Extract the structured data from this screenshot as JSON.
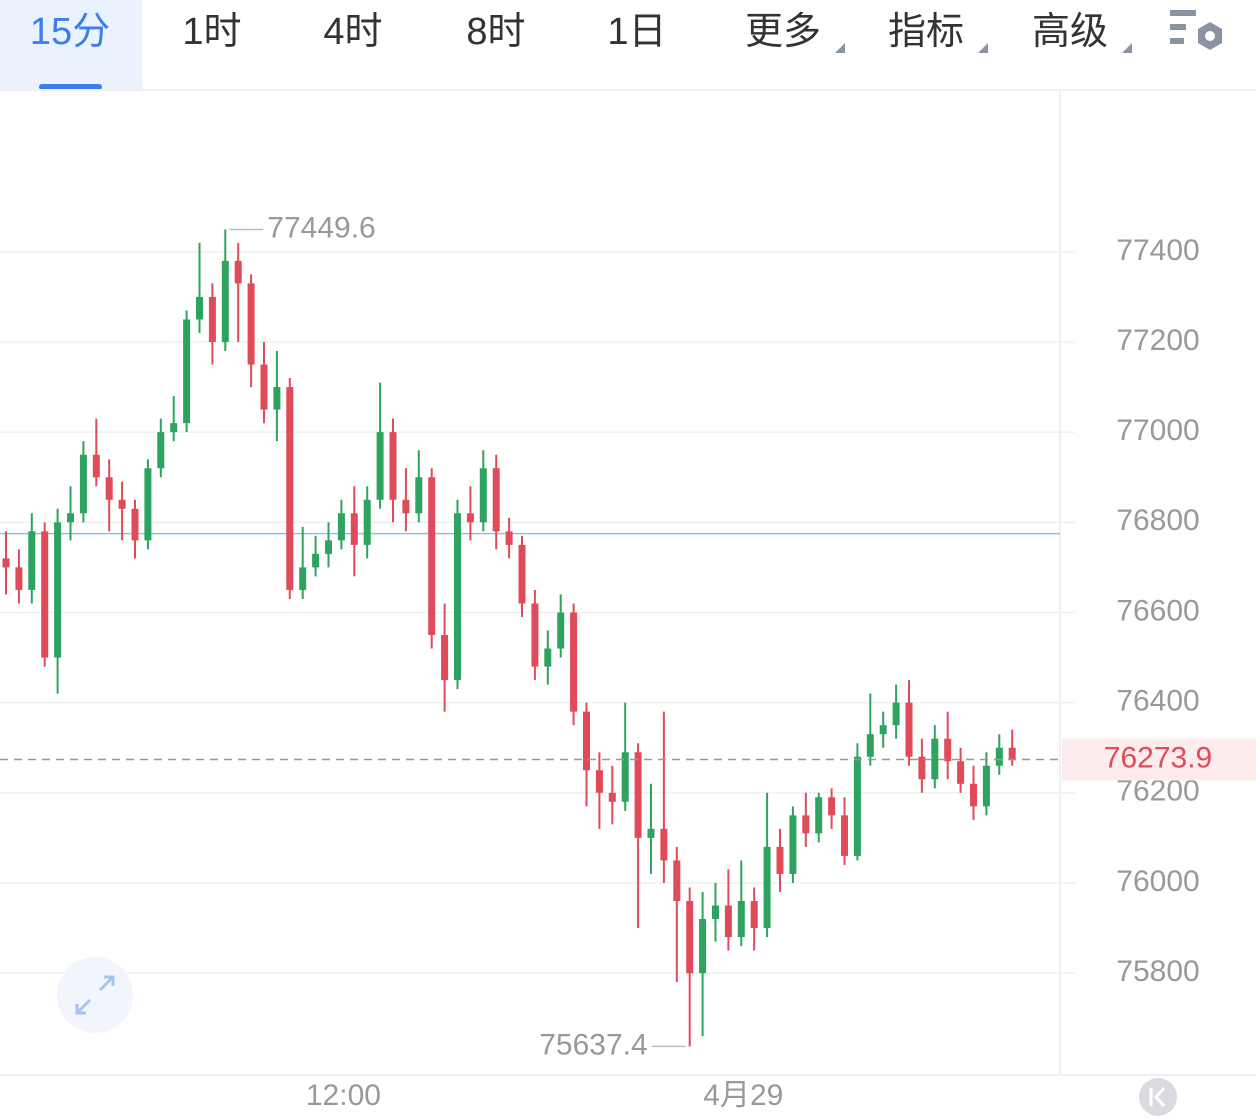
{
  "tabs": [
    {
      "label": "15分"
    },
    {
      "label": "1时"
    },
    {
      "label": "4时"
    },
    {
      "label": "8时"
    },
    {
      "label": "1日"
    },
    {
      "label": "更多",
      "dropdown": true
    },
    {
      "label": "指标",
      "dropdown": true
    },
    {
      "label": "高级",
      "dropdown": true
    }
  ],
  "selected_tab": 0,
  "chart_data": {
    "type": "candlestick",
    "categories": [
      null,
      null,
      null,
      null,
      null,
      null,
      null,
      null,
      null,
      null,
      null,
      null,
      null,
      null,
      null,
      null,
      null,
      null,
      null,
      null,
      null,
      null,
      null,
      null,
      null,
      null,
      "12:00",
      null,
      null,
      null,
      null,
      null,
      null,
      null,
      null,
      null,
      null,
      null,
      null,
      null,
      null,
      null,
      null,
      null,
      null,
      null,
      null,
      null,
      null,
      null,
      null,
      null,
      null,
      null,
      null,
      null,
      null,
      "4月29",
      null,
      null,
      null,
      null,
      null,
      null,
      null,
      null,
      null,
      null,
      null,
      null,
      null,
      null,
      null,
      null,
      null,
      null,
      null,
      null,
      null
    ],
    "open": [
      76720,
      76700,
      76650,
      76780,
      76500,
      76800,
      76820,
      76950,
      76900,
      76850,
      76830,
      76760,
      76920,
      77000,
      77020,
      77250,
      77300,
      77200,
      77380,
      77330,
      77150,
      77050,
      77100,
      76650,
      76700,
      76730,
      76760,
      76820,
      76750,
      76850,
      77000,
      76850,
      76820,
      76900,
      76550,
      76450,
      76820,
      76800,
      76920,
      76780,
      76750,
      76620,
      76480,
      76520,
      76600,
      76380,
      76250,
      76200,
      76180,
      76290,
      76100,
      76120,
      76050,
      75960,
      75800,
      75920,
      75950,
      75880,
      75960,
      75900,
      76080,
      76020,
      76150,
      76110,
      76190,
      76150,
      76060,
      76280,
      76330,
      76350,
      76400,
      76280,
      76230,
      76320,
      76270,
      76220,
      76170,
      76260,
      76300
    ],
    "high": [
      76780,
      76740,
      76820,
      76800,
      76830,
      76880,
      76980,
      77030,
      76940,
      76890,
      76850,
      76940,
      77030,
      77080,
      77270,
      77420,
      77330,
      77449.6,
      77420,
      77350,
      77200,
      77180,
      77120,
      76790,
      76770,
      76800,
      76850,
      76880,
      76880,
      77110,
      77030,
      76920,
      76960,
      76920,
      76620,
      76850,
      76880,
      76960,
      76950,
      76810,
      76770,
      76650,
      76560,
      76640,
      76620,
      76400,
      76290,
      76260,
      76400,
      76310,
      76220,
      76380,
      76080,
      75990,
      75980,
      76000,
      76030,
      76050,
      75990,
      76200,
      76120,
      76170,
      76200,
      76200,
      76210,
      76190,
      76310,
      76420,
      76380,
      76440,
      76450,
      76320,
      76350,
      76380,
      76300,
      76260,
      76290,
      76330,
      76340
    ],
    "low": [
      76640,
      76620,
      76620,
      76480,
      76420,
      76760,
      76800,
      76880,
      76780,
      76760,
      76720,
      76740,
      76900,
      76980,
      77000,
      77220,
      77150,
      77180,
      77200,
      77100,
      77020,
      76980,
      76630,
      76630,
      76680,
      76700,
      76740,
      76680,
      76720,
      76830,
      76800,
      76780,
      76800,
      76520,
      76380,
      76430,
      76760,
      76780,
      76740,
      76720,
      76590,
      76450,
      76440,
      76500,
      76350,
      76170,
      76120,
      76130,
      76160,
      75900,
      76020,
      76000,
      75780,
      75637.4,
      75660,
      75870,
      75850,
      75860,
      75850,
      75880,
      75980,
      76000,
      76080,
      76090,
      76120,
      76040,
      76050,
      76260,
      76300,
      76320,
      76260,
      76200,
      76210,
      76230,
      76200,
      76140,
      76150,
      76240,
      76260
    ],
    "close": [
      76700,
      76650,
      76780,
      76500,
      76800,
      76820,
      76950,
      76900,
      76850,
      76830,
      76760,
      76920,
      77000,
      77020,
      77250,
      77300,
      77200,
      77380,
      77330,
      77150,
      77050,
      77100,
      76650,
      76700,
      76730,
      76760,
      76820,
      76750,
      76850,
      77000,
      76850,
      76820,
      76900,
      76550,
      76450,
      76820,
      76800,
      76920,
      76780,
      76750,
      76620,
      76480,
      76520,
      76600,
      76380,
      76250,
      76200,
      76180,
      76290,
      76100,
      76120,
      76050,
      75960,
      75800,
      75920,
      75950,
      75880,
      75960,
      75900,
      76080,
      76020,
      76150,
      76110,
      76190,
      76150,
      76060,
      76280,
      76330,
      76350,
      76400,
      76280,
      76230,
      76320,
      76270,
      76220,
      76170,
      76260,
      76300,
      76273.9
    ],
    "up_color": "#2ea35f",
    "down_color": "#e04b5a",
    "ylim": [
      75574,
      77759
    ],
    "yticks": [
      75800,
      76000,
      76200,
      76400,
      76600,
      76800,
      77000,
      77200,
      77400
    ],
    "grid": true,
    "reference_line": 76775,
    "max_index": 17,
    "min_index": 53
  }
}
